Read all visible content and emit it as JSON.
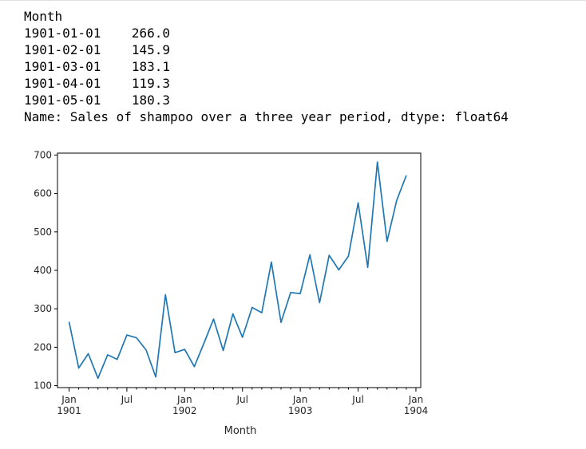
{
  "cell_output": {
    "index_name": "Month",
    "rows": [
      {
        "index": "1901-01-01",
        "value": "266.0"
      },
      {
        "index": "1901-02-01",
        "value": "145.9"
      },
      {
        "index": "1901-03-01",
        "value": "183.1"
      },
      {
        "index": "1901-04-01",
        "value": "119.3"
      },
      {
        "index": "1901-05-01",
        "value": "180.3"
      }
    ],
    "footer": "Name: Sales of shampoo over a three year period, dtype: float64"
  },
  "chart_data": {
    "type": "line",
    "title": "",
    "xlabel": "Month",
    "ylabel": "",
    "x": [
      "1901-01",
      "1901-02",
      "1901-03",
      "1901-04",
      "1901-05",
      "1901-06",
      "1901-07",
      "1901-08",
      "1901-09",
      "1901-10",
      "1901-11",
      "1901-12",
      "1902-01",
      "1902-02",
      "1902-03",
      "1902-04",
      "1902-05",
      "1902-06",
      "1902-07",
      "1902-08",
      "1902-09",
      "1902-10",
      "1902-11",
      "1902-12",
      "1903-01",
      "1903-02",
      "1903-03",
      "1903-04",
      "1903-05",
      "1903-06",
      "1903-07",
      "1903-08",
      "1903-09",
      "1903-10",
      "1903-11",
      "1903-12"
    ],
    "series": [
      {
        "values": [
          266.0,
          145.9,
          183.1,
          119.3,
          180.3,
          168.5,
          231.8,
          224.5,
          192.8,
          122.9,
          336.5,
          185.9,
          194.3,
          149.5,
          210.1,
          273.3,
          191.4,
          287.0,
          226.0,
          303.6,
          289.9,
          421.6,
          264.5,
          342.3,
          339.7,
          440.4,
          315.9,
          439.3,
          401.3,
          437.4,
          575.5,
          407.6,
          682.0,
          475.3,
          581.3,
          646.9
        ],
        "color": "#1f77b4"
      }
    ],
    "ylim": [
      95,
      705
    ],
    "yticks": [
      100,
      200,
      300,
      400,
      500,
      600,
      700
    ],
    "xticks": [
      {
        "pos": 0,
        "label": "Jan",
        "sublabel": "1901"
      },
      {
        "pos": 6,
        "label": "Jul",
        "sublabel": ""
      },
      {
        "pos": 12,
        "label": "Jan",
        "sublabel": "1902"
      },
      {
        "pos": 18,
        "label": "Jul",
        "sublabel": ""
      },
      {
        "pos": 24,
        "label": "Jan",
        "sublabel": "1903"
      },
      {
        "pos": 30,
        "label": "Jul",
        "sublabel": ""
      },
      {
        "pos": 36,
        "label": "Jan",
        "sublabel": "1904"
      }
    ],
    "xlim": [
      -1.2,
      36.5
    ],
    "grid": false,
    "legend": "none"
  }
}
